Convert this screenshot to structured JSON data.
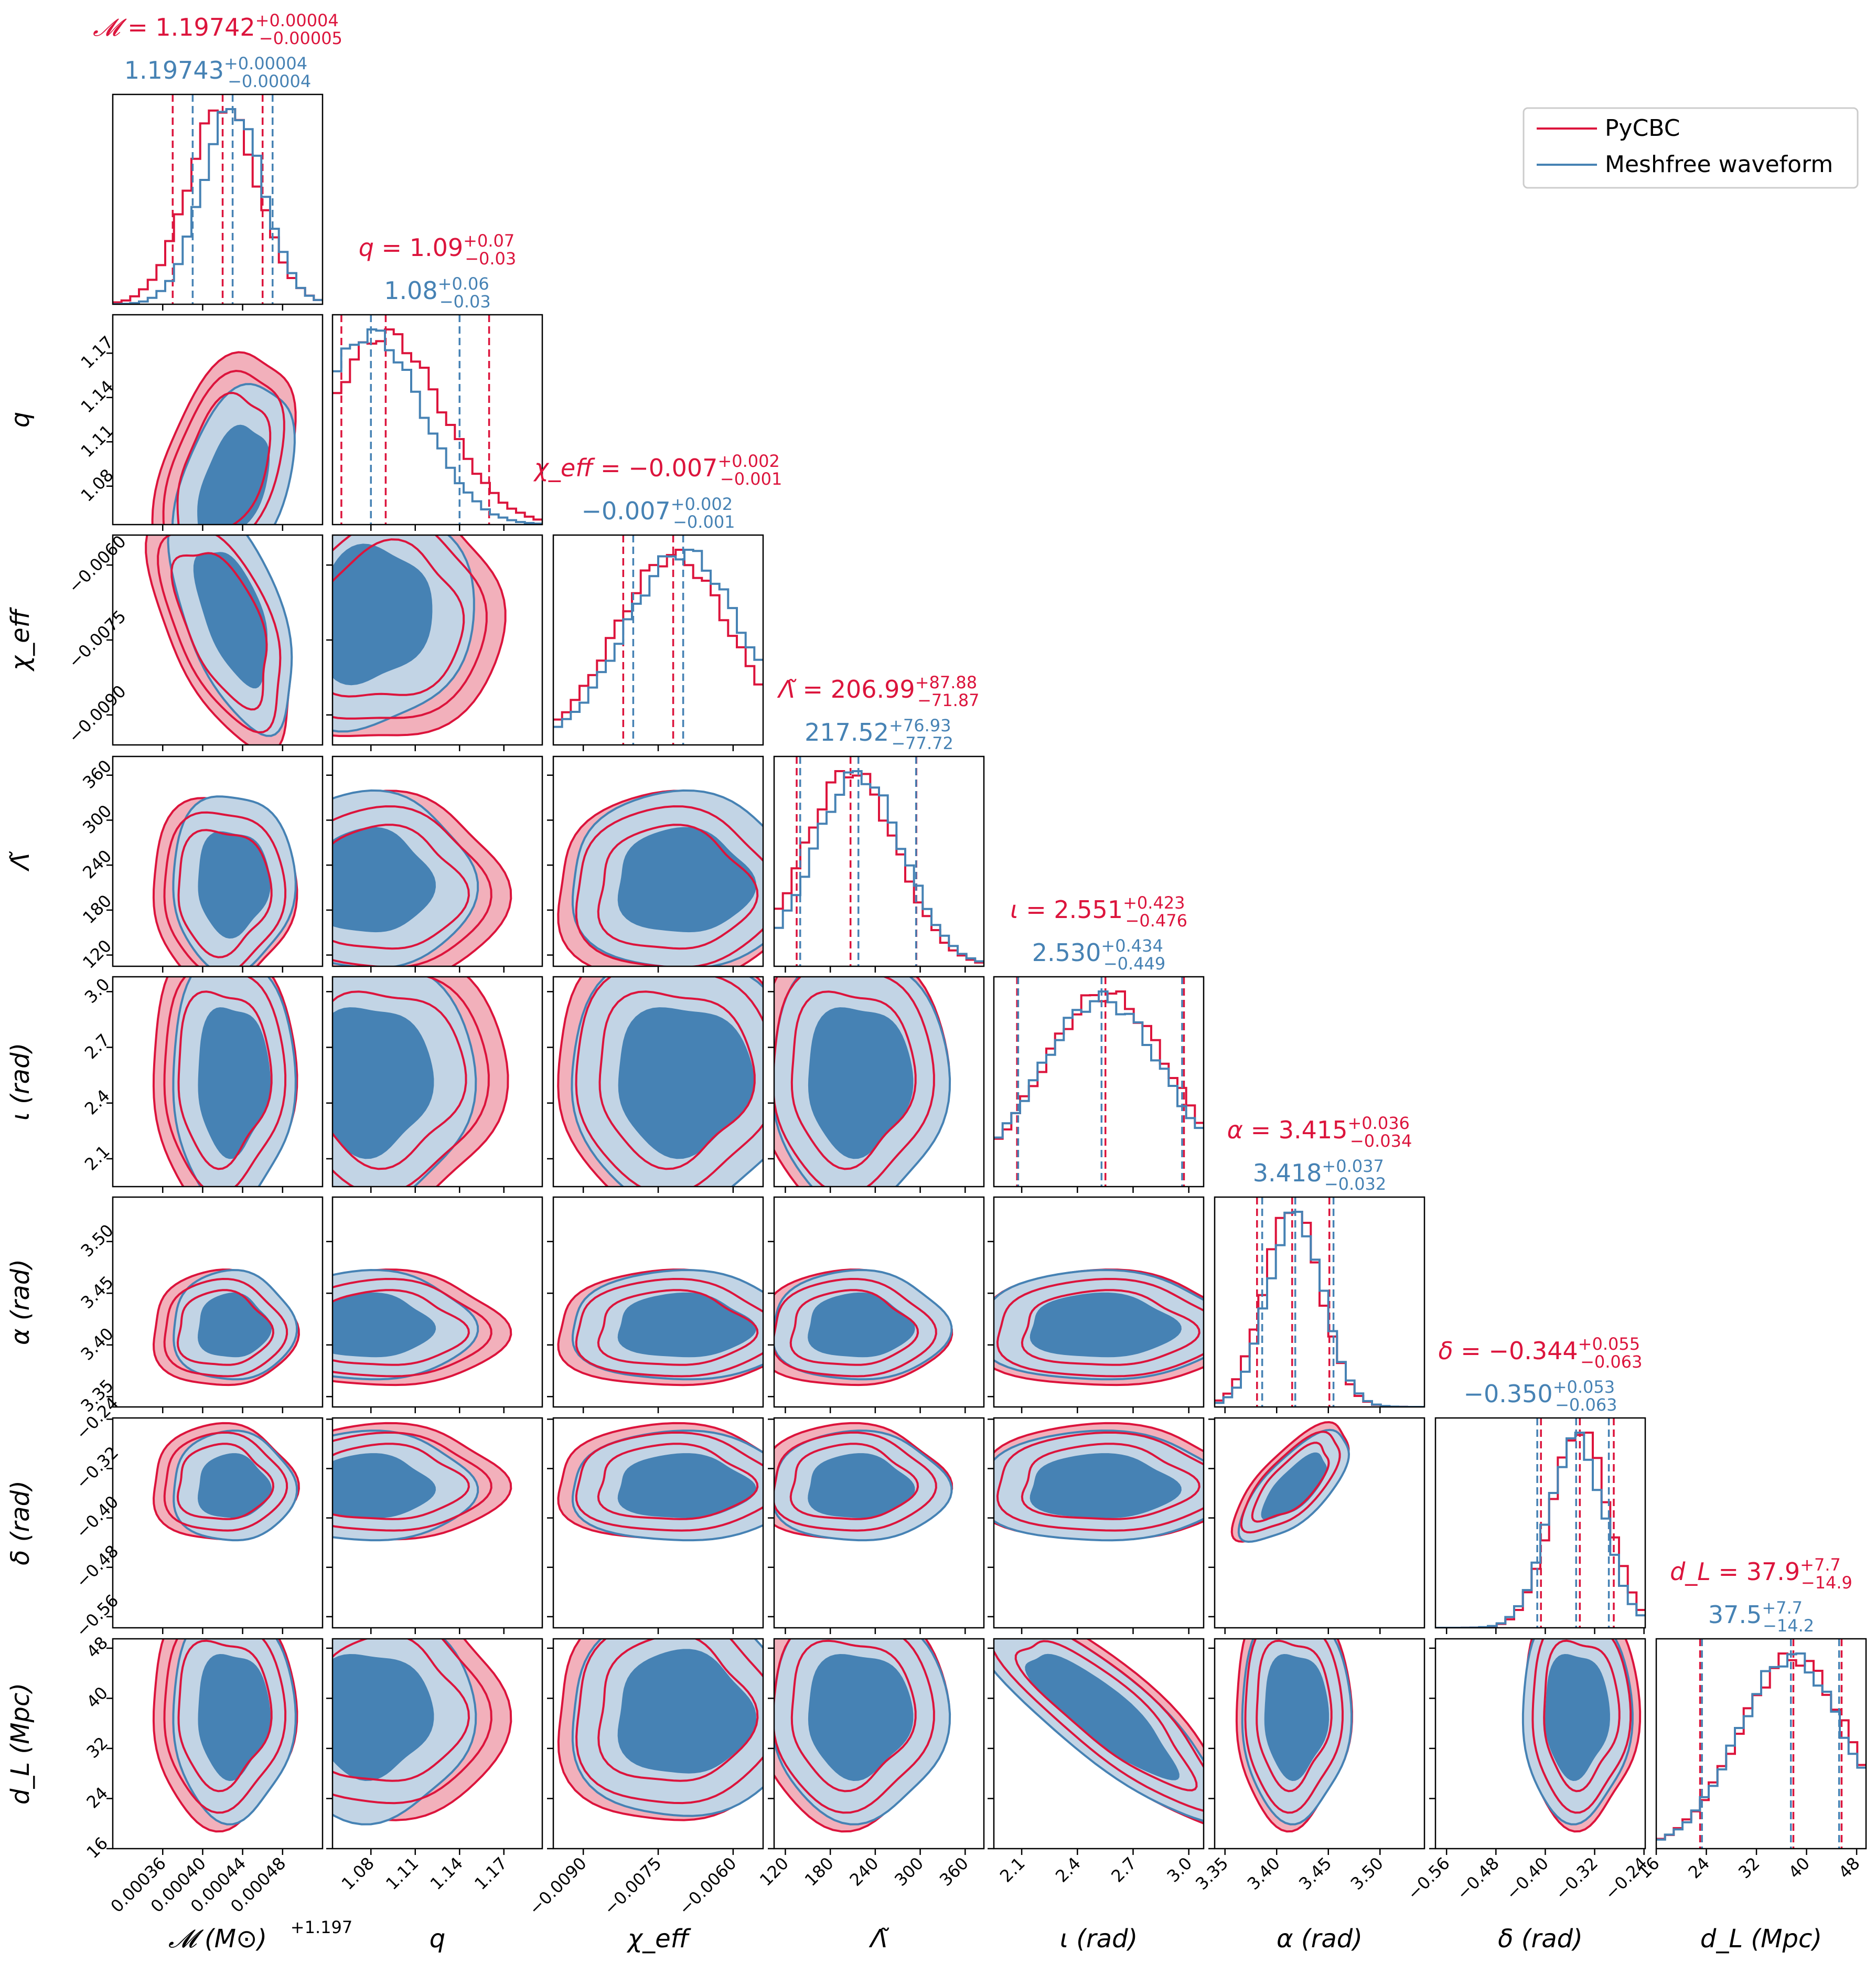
{
  "legend": {
    "placement": "top-right",
    "entries": [
      {
        "label": "PyCBC",
        "color": "#dc143c"
      },
      {
        "label": "Meshfree waveform",
        "color": "#4682b4"
      }
    ]
  },
  "colors": {
    "pycbc": "#dc143c",
    "meshfree": "#4682b4",
    "meshfree_fill_dark": "#4682b4",
    "meshfree_fill_light": "#c2d4e5",
    "pycbc_fill_light": "#f2b0bb"
  },
  "parameters": [
    {
      "key": "mc",
      "axis_label": "𝓜 (M⊙)",
      "offset_label": "+1.197",
      "range": [
        0.00031,
        0.00052
      ],
      "ticks": [
        0.00036,
        0.0004,
        0.00044,
        0.00048
      ],
      "tick_labels": [
        "0.00036",
        "0.00040",
        "0.00044",
        "0.00048"
      ],
      "title_pycbc": {
        "name": "𝓜",
        "value": "1.19742",
        "plus": "+0.00004",
        "minus": "−0.00005"
      },
      "title_meshfree": {
        "value": "1.19743",
        "plus": "+0.00004",
        "minus": "−0.00004"
      }
    },
    {
      "key": "q",
      "axis_label": "q",
      "range": [
        1.054,
        1.196
      ],
      "ticks": [
        1.08,
        1.11,
        1.14,
        1.17
      ],
      "tick_labels": [
        "1.08",
        "1.11",
        "1.14",
        "1.17"
      ],
      "title_pycbc": {
        "name": "q",
        "value": "1.09",
        "plus": "+0.07",
        "minus": "−0.03"
      },
      "title_meshfree": {
        "value": "1.08",
        "plus": "+0.06",
        "minus": "−0.03"
      }
    },
    {
      "key": "chi",
      "axis_label": "χ_eff",
      "range": [
        -0.0096,
        -0.0054
      ],
      "ticks": [
        -0.009,
        -0.0075,
        -0.006
      ],
      "tick_labels": [
        "−0.0090",
        "−0.0075",
        "−0.0060"
      ],
      "title_pycbc": {
        "name": "χ_eff",
        "value": "−0.007",
        "plus": "+0.002",
        "minus": "−0.001"
      },
      "title_meshfree": {
        "value": "−0.007",
        "plus": "+0.002",
        "minus": "−0.001"
      }
    },
    {
      "key": "lam",
      "axis_label": "Λ̃",
      "range": [
        105,
        385
      ],
      "ticks": [
        120,
        180,
        240,
        300,
        360
      ],
      "tick_labels": [
        "120",
        "180",
        "240",
        "300",
        "360"
      ],
      "title_pycbc": {
        "name": "Λ̃",
        "value": "206.99",
        "plus": "+87.88",
        "minus": "−71.87"
      },
      "title_meshfree": {
        "value": "217.52",
        "plus": "+76.93",
        "minus": "−77.72"
      }
    },
    {
      "key": "iota",
      "axis_label": "ι (rad)",
      "range": [
        1.95,
        3.08
      ],
      "ticks": [
        2.1,
        2.4,
        2.7,
        3.0
      ],
      "tick_labels": [
        "2.1",
        "2.4",
        "2.7",
        "3.0"
      ],
      "title_pycbc": {
        "name": "ι",
        "value": "2.551",
        "plus": "+0.423",
        "minus": "−0.476"
      },
      "title_meshfree": {
        "value": "2.530",
        "plus": "+0.434",
        "minus": "−0.449"
      }
    },
    {
      "key": "alpha",
      "axis_label": "α (rad)",
      "range": [
        3.34,
        3.543
      ],
      "ticks": [
        3.35,
        3.4,
        3.45,
        3.5
      ],
      "tick_labels": [
        "3.35",
        "3.40",
        "3.45",
        "3.50"
      ],
      "title_pycbc": {
        "name": "α",
        "value": "3.415",
        "plus": "+0.036",
        "minus": "−0.034"
      },
      "title_meshfree": {
        "value": "3.418",
        "plus": "+0.037",
        "minus": "−0.032"
      }
    },
    {
      "key": "delta",
      "axis_label": "δ (rad)",
      "range": [
        -0.578,
        -0.238
      ],
      "ticks": [
        -0.56,
        -0.48,
        -0.4,
        -0.32,
        -0.24
      ],
      "tick_labels": [
        "−0.56",
        "−0.48",
        "−0.40",
        "−0.32",
        "−0.24"
      ],
      "title_pycbc": {
        "name": "δ",
        "value": "−0.344",
        "plus": "+0.055",
        "minus": "−0.063"
      },
      "title_meshfree": {
        "value": "−0.350",
        "plus": "+0.053",
        "minus": "−0.063"
      }
    },
    {
      "key": "dl",
      "axis_label": "d_L (Mpc)",
      "range": [
        16,
        49.5
      ],
      "ticks": [
        16,
        24,
        32,
        40,
        48
      ],
      "tick_labels": [
        "16",
        "24",
        "32",
        "40",
        "48"
      ],
      "title_pycbc": {
        "name": "d_L",
        "value": "37.9",
        "plus": "+7.7",
        "minus": "−14.9"
      },
      "title_meshfree": {
        "value": "37.5",
        "plus": "+7.7",
        "minus": "−14.2"
      }
    }
  ],
  "chart_data": {
    "type": "corner",
    "series": [
      {
        "name": "PyCBC",
        "color": "#dc143c",
        "medians": [
          0.00042,
          1.09,
          -0.0072,
          206.99,
          2.551,
          3.415,
          -0.344,
          37.9
        ],
        "lower": [
          0.00037,
          1.06,
          -0.0082,
          135.12,
          2.075,
          3.381,
          -0.407,
          23.0
        ],
        "upper": [
          0.00046,
          1.16,
          -0.0052,
          294.87,
          2.974,
          3.451,
          -0.289,
          45.6
        ]
      },
      {
        "name": "Meshfree waveform",
        "color": "#4682b4",
        "medians": [
          0.00043,
          1.08,
          -0.007,
          217.52,
          2.53,
          3.418,
          -0.35,
          37.5
        ],
        "lower": [
          0.00039,
          1.05,
          -0.008,
          139.8,
          2.081,
          3.386,
          -0.413,
          23.3
        ],
        "upper": [
          0.00047,
          1.14,
          -0.005,
          294.45,
          2.964,
          3.455,
          -0.297,
          45.2
        ]
      }
    ]
  }
}
